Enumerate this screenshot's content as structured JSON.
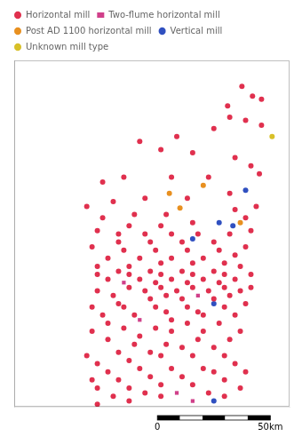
{
  "chart_data": {
    "type": "scatter",
    "series": [
      {
        "name": "Horizontal mill",
        "color": "#e0304e",
        "marker": "circle",
        "x": [
          -6.25,
          -6.05,
          -5.88,
          -6.52,
          -6.48,
          -6.18,
          -5.88,
          -6.78,
          -7.48,
          -8.18,
          -7.78,
          -7.18,
          -6.38,
          -6.08,
          -5.92,
          -6.88,
          -7.58,
          -8.48,
          -8.88,
          -6.48,
          -7.28,
          -8.08,
          -8.68,
          -9.18,
          -5.98,
          -6.38,
          -7.68,
          -8.28,
          -8.88,
          -6.18,
          -7.18,
          -7.78,
          -8.38,
          -8.98,
          -6.08,
          -6.48,
          -7.08,
          -7.58,
          -8.08,
          -8.58,
          -6.78,
          -7.38,
          -7.98,
          -8.58,
          -9.08,
          -6.18,
          -6.68,
          -7.28,
          -7.88,
          -8.48,
          -6.38,
          -6.98,
          -7.58,
          -8.18,
          -8.78,
          -6.58,
          -7.18,
          -7.78,
          -8.38,
          -8.98,
          -6.28,
          -6.78,
          -7.38,
          -7.98,
          -8.58,
          -6.08,
          -6.58,
          -7.18,
          -7.78,
          -8.38,
          -8.98,
          -6.38,
          -6.98,
          -7.58,
          -8.18,
          -8.78,
          -6.68,
          -7.28,
          -7.88,
          -6.08,
          -6.58,
          -7.18,
          -7.78,
          -8.38,
          -8.98,
          -6.28,
          -6.88,
          -7.48,
          -8.08,
          -8.68,
          -6.48,
          -7.68,
          -6.78,
          -7.38,
          -7.98,
          -8.58,
          -6.18,
          -7.28,
          -7.88,
          -8.48,
          -9.08,
          -6.58,
          -7.08,
          -7.68,
          -8.28,
          -8.88,
          -6.38,
          -6.98,
          -7.58,
          -8.78,
          -6.68,
          -7.28,
          -7.88,
          -8.48,
          -9.08,
          -6.28,
          -6.98,
          -7.58,
          -8.18,
          -8.78,
          -6.48,
          -7.08,
          -7.68,
          -8.28,
          -6.78,
          -7.38,
          -7.98,
          -8.58,
          -9.18,
          -6.58,
          -7.18,
          -7.78,
          -8.38,
          -8.98,
          -6.38,
          -6.98,
          -7.58,
          -8.18,
          -8.78,
          -6.18,
          -6.78,
          -7.38,
          -7.98,
          -8.58,
          -9.08,
          -6.58,
          -7.18,
          -7.78,
          -8.38,
          -8.98,
          -6.28,
          -6.88,
          -8.08,
          -8.68,
          -6.58,
          -7.78,
          -8.38,
          -8.98
        ],
        "values": [
          55.2,
          55.08,
          55.04,
          54.96,
          54.82,
          54.78,
          54.72,
          54.68,
          54.58,
          54.52,
          54.42,
          54.38,
          54.32,
          54.22,
          54.12,
          54.08,
          54.08,
          54.08,
          54.02,
          53.88,
          53.82,
          53.82,
          53.78,
          53.72,
          53.72,
          53.68,
          53.62,
          53.62,
          53.58,
          53.58,
          53.52,
          53.48,
          53.48,
          53.42,
          53.42,
          53.38,
          53.38,
          53.38,
          53.38,
          53.38,
          53.28,
          53.28,
          53.28,
          53.28,
          53.22,
          53.22,
          53.18,
          53.18,
          53.18,
          53.18,
          53.12,
          53.08,
          53.08,
          53.08,
          53.08,
          53.02,
          53.02,
          53.02,
          52.98,
          52.98,
          52.98,
          52.92,
          52.92,
          52.92,
          52.92,
          52.88,
          52.88,
          52.88,
          52.88,
          52.88,
          52.88,
          52.82,
          52.82,
          52.82,
          52.82,
          52.82,
          52.78,
          52.78,
          52.78,
          52.72,
          52.72,
          52.72,
          52.72,
          52.72,
          52.68,
          52.68,
          52.68,
          52.68,
          52.68,
          52.62,
          52.62,
          52.62,
          52.58,
          52.58,
          52.58,
          52.52,
          52.52,
          52.48,
          52.48,
          52.48,
          52.48,
          52.48,
          52.42,
          52.42,
          52.38,
          52.38,
          52.38,
          52.38,
          52.32,
          52.28,
          52.28,
          52.28,
          52.22,
          52.22,
          52.18,
          52.18,
          52.18,
          52.18,
          52.12,
          52.08,
          52.08,
          52.08,
          52.02,
          52.02,
          51.98,
          51.98,
          51.92,
          51.92,
          51.88,
          51.88,
          51.88,
          51.88,
          51.82,
          51.78,
          51.78,
          51.72,
          51.72,
          51.72,
          51.68,
          51.68,
          51.68,
          51.62,
          51.62,
          51.58,
          51.58,
          51.58,
          51.52,
          51.52,
          51.48,
          51.48,
          51.48,
          51.42,
          51.42,
          51.38,
          51.38,
          51.38,
          51.32,
          51.28
        ]
      },
      {
        "name": "Two-flume horizontal mill",
        "color": "#d0408a",
        "marker": "square",
        "x": [
          -8.48,
          -7.08,
          -8.18,
          -7.48,
          -7.18
        ],
        "values": [
          52.78,
          52.62,
          52.32,
          51.42,
          51.32
        ]
      },
      {
        "name": "Post AD 1100 horizontal mill",
        "color": "#e89020",
        "marker": "circle",
        "x": [
          -6.98,
          -7.62,
          -6.28,
          -7.42
        ],
        "values": [
          53.98,
          53.88,
          53.52,
          53.7
        ]
      },
      {
        "name": "Vertical mill",
        "color": "#3050c0",
        "marker": "circle",
        "x": [
          -6.18,
          -6.68,
          -7.18,
          -6.78,
          -6.78,
          -6.42
        ],
        "values": [
          53.92,
          53.52,
          53.32,
          52.52,
          51.32,
          53.48
        ]
      },
      {
        "name": "Unknown mill type",
        "color": "#d8c028",
        "marker": "circle",
        "x": [
          -5.68
        ],
        "values": [
          54.58
        ]
      }
    ],
    "xlim": [
      -10.55,
      -5.35
    ],
    "ylim": [
      51.25,
      55.52
    ],
    "tick_labels": false,
    "grid": false,
    "legend": "upper left",
    "annotations": [
      "0",
      "50km"
    ]
  }
}
